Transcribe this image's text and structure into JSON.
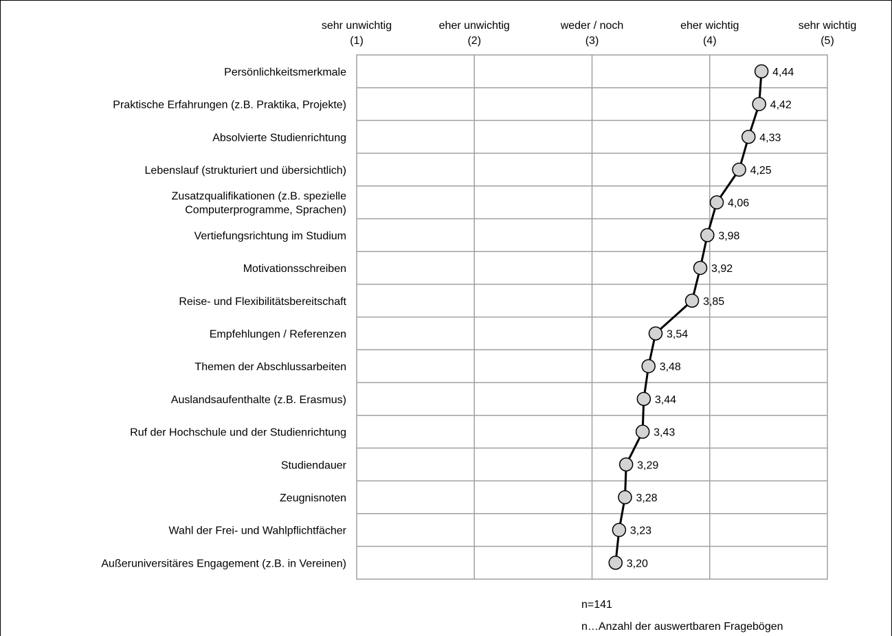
{
  "chart_data": {
    "type": "line",
    "orientation": "horizontal-profile",
    "xlim": [
      1,
      5
    ],
    "grid": true,
    "ticks": [
      {
        "value": 1,
        "label": "sehr unwichtig",
        "code": "(1)"
      },
      {
        "value": 2,
        "label": "eher unwichtig",
        "code": "(2)"
      },
      {
        "value": 3,
        "label": "weder / noch",
        "code": "(3)"
      },
      {
        "value": 4,
        "label": "eher wichtig",
        "code": "(4)"
      },
      {
        "value": 5,
        "label": "sehr wichtig",
        "code": "(5)"
      }
    ],
    "categories": [
      [
        "Persönlichkeitsmerkmale"
      ],
      [
        "Praktische Erfahrungen (z.B. Praktika, Projekte)"
      ],
      [
        "Absolvierte Studienrichtung"
      ],
      [
        "Lebenslauf (strukturiert und übersichtlich)"
      ],
      [
        "Zusatzqualifikationen (z.B. spezielle",
        "Computerprogramme, Sprachen)"
      ],
      [
        "Vertiefungsrichtung im Studium"
      ],
      [
        "Motivationsschreiben"
      ],
      [
        "Reise- und Flexibilitätsbereitschaft"
      ],
      [
        "Empfehlungen / Referenzen"
      ],
      [
        "Themen der Abschlussarbeiten"
      ],
      [
        "Auslandsaufenthalte (z.B. Erasmus)"
      ],
      [
        "Ruf der Hochschule und der Studienrichtung"
      ],
      [
        "Studiendauer"
      ],
      [
        "Zeugnisnoten"
      ],
      [
        "Wahl der Frei- und Wahlpflichtfächer"
      ],
      [
        "Außeruniversitäres Engagement (z.B. in Vereinen)"
      ]
    ],
    "values": [
      4.44,
      4.42,
      4.33,
      4.25,
      4.06,
      3.98,
      3.92,
      3.85,
      3.54,
      3.48,
      3.44,
      3.43,
      3.29,
      3.28,
      3.23,
      3.2
    ],
    "value_labels": [
      "4,44",
      "4,42",
      "4,33",
      "4,25",
      "4,06",
      "3,98",
      "3,92",
      "3,85",
      "3,54",
      "3,48",
      "3,44",
      "3,43",
      "3,29",
      "3,28",
      "3,23",
      "3,20"
    ],
    "line_color": "#000000",
    "marker_fill": "#d3d3d3",
    "grid_color": "#a0a0a0"
  },
  "notes": {
    "n": "n=141",
    "n_definition": "n…Anzahl der auswertbaren Fragebögen"
  }
}
